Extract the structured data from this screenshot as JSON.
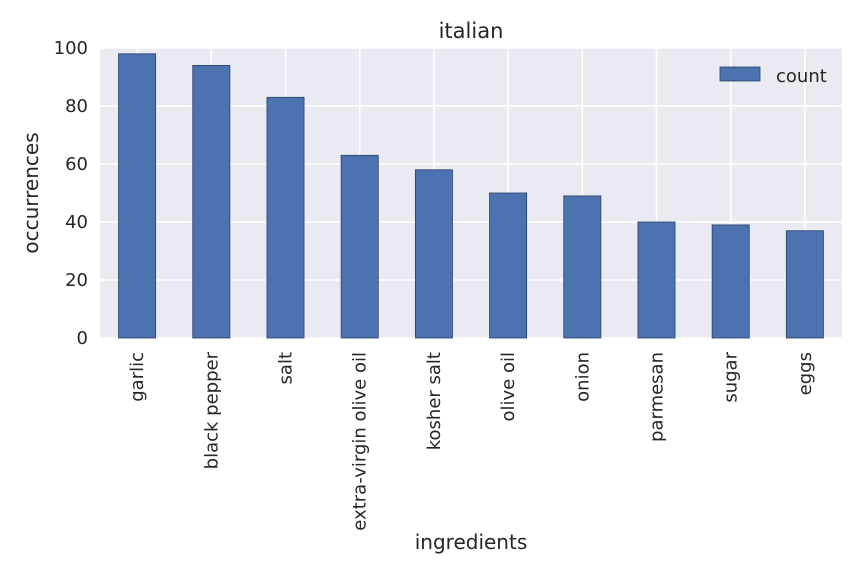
{
  "chart_data": {
    "type": "bar",
    "title": "italian",
    "xlabel": "ingredients",
    "ylabel": "occurrences",
    "categories": [
      "garlic",
      "black pepper",
      "salt",
      "extra-virgin olive oil",
      "kosher salt",
      "olive oil",
      "onion",
      "parmesan",
      "sugar",
      "eggs"
    ],
    "series": [
      {
        "name": "count",
        "values": [
          98,
          94,
          83,
          63,
          58,
          50,
          49,
          40,
          39,
          37
        ]
      }
    ],
    "ylim": [
      0,
      100
    ],
    "yticks": [
      0,
      20,
      40,
      60,
      80,
      100
    ],
    "grid": true,
    "legend": "top-right",
    "colors": {
      "bar": "#4c72b0",
      "background": "#eaeaf2",
      "grid": "#ffffff"
    }
  }
}
